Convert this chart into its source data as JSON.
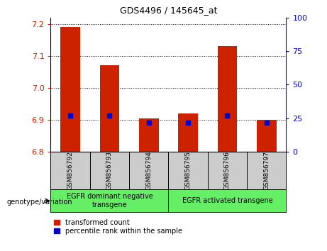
{
  "title": "GDS4496 / 145645_at",
  "categories": [
    "GSM856792",
    "GSM856793",
    "GSM856794",
    "GSM856795",
    "GSM856796",
    "GSM856797"
  ],
  "bar_values": [
    7.19,
    7.07,
    6.905,
    6.92,
    7.13,
    6.9
  ],
  "percentile_values": [
    27,
    27,
    22,
    22,
    27,
    22
  ],
  "bar_bottom": 6.8,
  "ylim": [
    6.8,
    7.22
  ],
  "y_ticks": [
    6.8,
    6.9,
    7.0,
    7.1,
    7.2
  ],
  "y_right_ticks": [
    0,
    25,
    50,
    75,
    100
  ],
  "bar_color": "#cc2200",
  "percentile_color": "#0000cc",
  "group1_label": "EGFR dominant negative\ntransgene",
  "group2_label": "EGFR activated transgene",
  "legend_red_label": "transformed count",
  "legend_blue_label": "percentile rank within the sample",
  "xlabel_left": "genotype/variation",
  "green_color": "#66ee66",
  "gray_color": "#cccccc"
}
